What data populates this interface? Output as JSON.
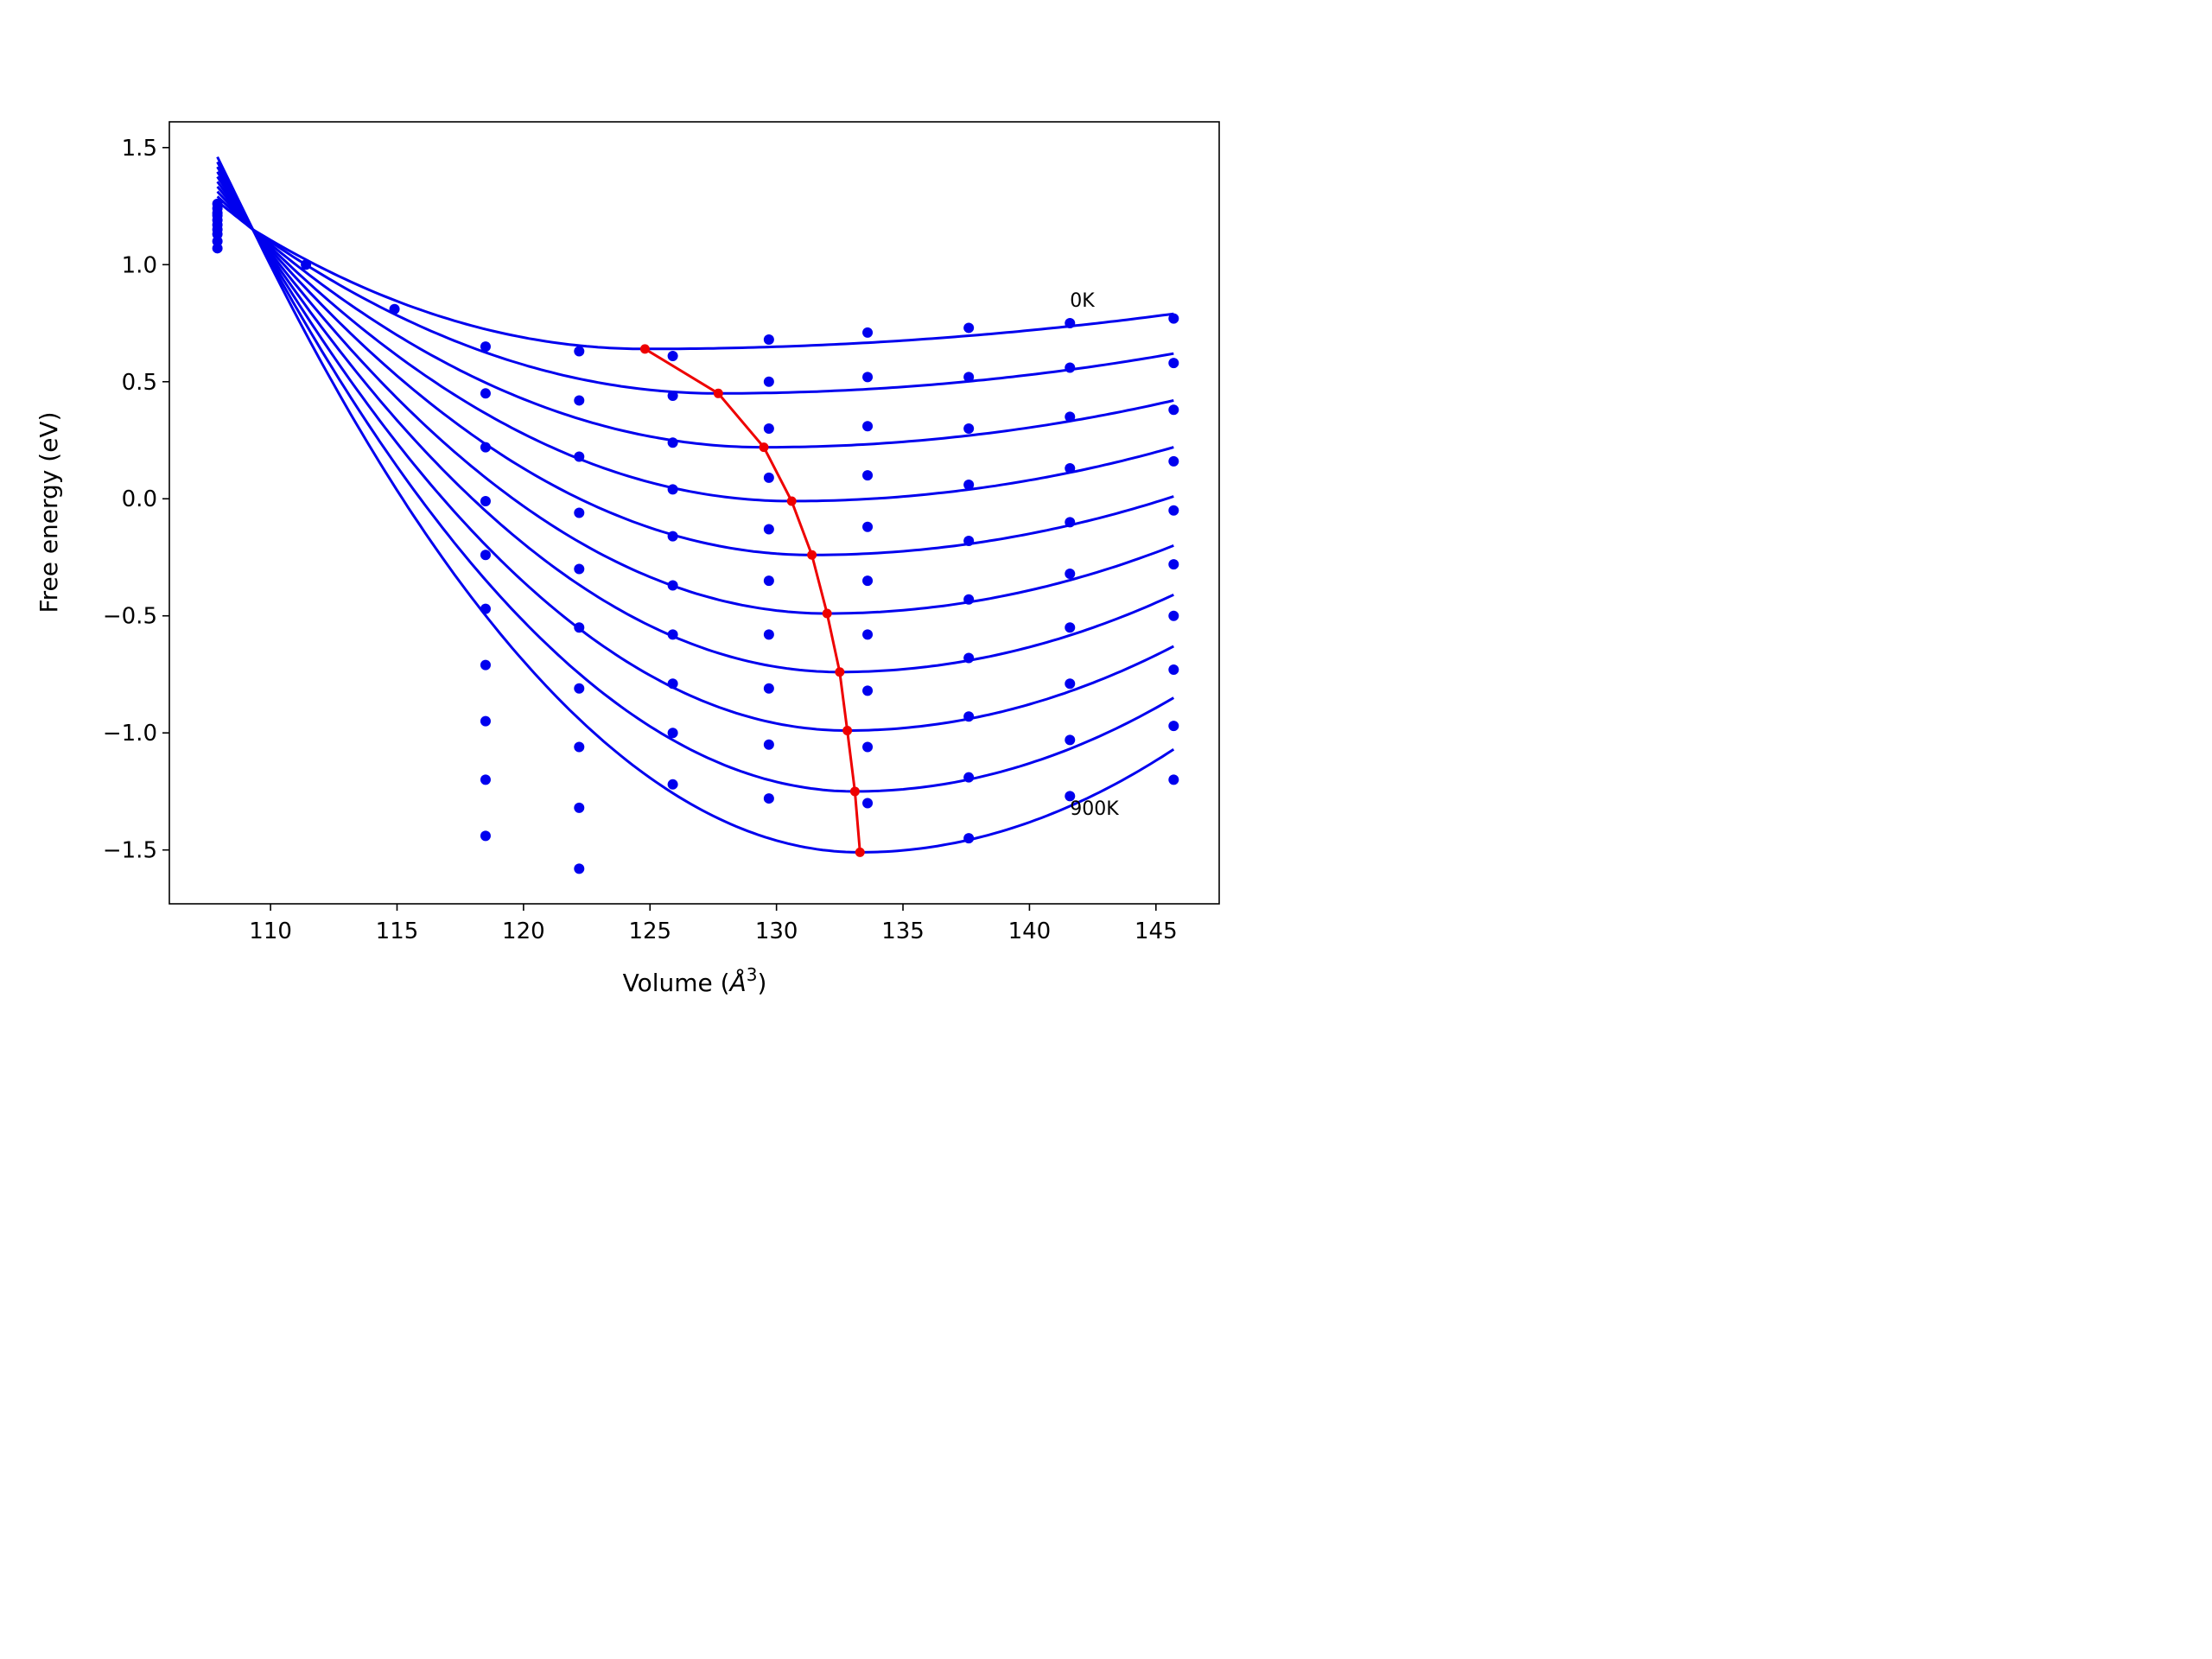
{
  "chart_data": {
    "type": "line",
    "xlabel": "Volume (",
    "xlabel_sym": "Å",
    "xlabel_sup": "3",
    "xlabel_end": ")",
    "ylabel": "Free energy (eV)",
    "xlim": [
      106,
      147.5
    ],
    "ylim": [
      -1.73,
      1.61
    ],
    "xticks": [
      110,
      115,
      120,
      125,
      130,
      135,
      140,
      145
    ],
    "yticks": [
      1.5,
      1.0,
      0.5,
      0.0,
      -0.5,
      -1.0,
      -1.5
    ],
    "ytick_labels": [
      "1.5",
      "1.0",
      "0.5",
      "0.0",
      "−0.5",
      "−1.0",
      "−1.5"
    ],
    "colors": {
      "fit": "#0000ee",
      "points": "#0000ee",
      "minima": "#ee0000"
    },
    "annotations": [
      {
        "text": "0K",
        "x": 141.6,
        "y": 0.82
      },
      {
        "text": "900K",
        "x": 141.6,
        "y": -1.35
      }
    ],
    "volumes": [
      107.9,
      111.4,
      114.9,
      118.5,
      122.2,
      125.9,
      129.7,
      133.6,
      137.6,
      141.6,
      145.7
    ],
    "temperatures_shown": [
      "0K",
      "900K"
    ],
    "series": [
      {
        "points": [
          1.07,
          1.0,
          0.81,
          0.65,
          0.63,
          0.61,
          0.68,
          0.71,
          0.73,
          0.75,
          0.77
        ],
        "min": [
          124.8,
          0.64
        ],
        "end": [
          145.7,
          0.79
        ]
      },
      {
        "points": [
          1.1,
          null,
          null,
          0.45,
          0.42,
          0.44,
          0.5,
          0.52,
          0.52,
          0.56,
          0.58
        ],
        "min": [
          127.7,
          0.45
        ],
        "end": [
          145.7,
          0.62
        ]
      },
      {
        "points": [
          1.13,
          null,
          null,
          0.22,
          0.18,
          0.24,
          0.3,
          0.31,
          0.3,
          0.35,
          0.38
        ],
        "min": [
          129.5,
          0.22
        ],
        "end": [
          145.7,
          0.42
        ]
      },
      {
        "points": [
          1.15,
          null,
          null,
          -0.01,
          -0.06,
          0.04,
          0.09,
          0.1,
          0.06,
          0.13,
          0.16
        ],
        "min": [
          130.6,
          -0.01
        ],
        "end": [
          145.7,
          0.22
        ]
      },
      {
        "points": [
          1.17,
          null,
          null,
          -0.24,
          -0.3,
          -0.16,
          -0.13,
          -0.12,
          -0.18,
          -0.1,
          -0.05
        ],
        "min": [
          131.4,
          -0.24
        ],
        "end": [
          145.7,
          0.01
        ]
      },
      {
        "points": [
          1.19,
          null,
          null,
          -0.47,
          -0.55,
          -0.37,
          -0.35,
          -0.35,
          -0.43,
          -0.32,
          -0.28
        ],
        "min": [
          132.0,
          -0.49
        ],
        "end": [
          145.7,
          -0.2
        ]
      },
      {
        "points": [
          1.21,
          null,
          null,
          -0.71,
          -0.81,
          -0.58,
          -0.58,
          -0.58,
          -0.68,
          -0.55,
          -0.5
        ],
        "min": [
          132.5,
          -0.74
        ],
        "end": [
          145.7,
          -0.41
        ]
      },
      {
        "points": [
          1.22,
          null,
          null,
          -0.95,
          -1.06,
          -0.79,
          -0.81,
          -0.82,
          -0.93,
          -0.79,
          -0.73
        ],
        "min": [
          132.8,
          -0.99
        ],
        "end": [
          145.7,
          -0.63
        ]
      },
      {
        "points": [
          1.24,
          null,
          null,
          -1.2,
          -1.32,
          -1.0,
          -1.05,
          -1.06,
          -1.19,
          -1.03,
          -0.97
        ],
        "min": [
          133.1,
          -1.25
        ],
        "end": [
          145.7,
          -0.85
        ]
      },
      {
        "points": [
          1.26,
          null,
          null,
          -1.44,
          -1.58,
          -1.22,
          -1.28,
          -1.3,
          -1.45,
          -1.27,
          -1.2
        ],
        "min": [
          133.3,
          -1.51
        ],
        "end": [
          145.7,
          -1.07
        ]
      }
    ],
    "fit_start": {
      "x": 107.9,
      "y_top": 1.46,
      "y_bottom": 1.27
    },
    "fit_pivot": {
      "x": 111.3,
      "y": 1.0
    }
  }
}
